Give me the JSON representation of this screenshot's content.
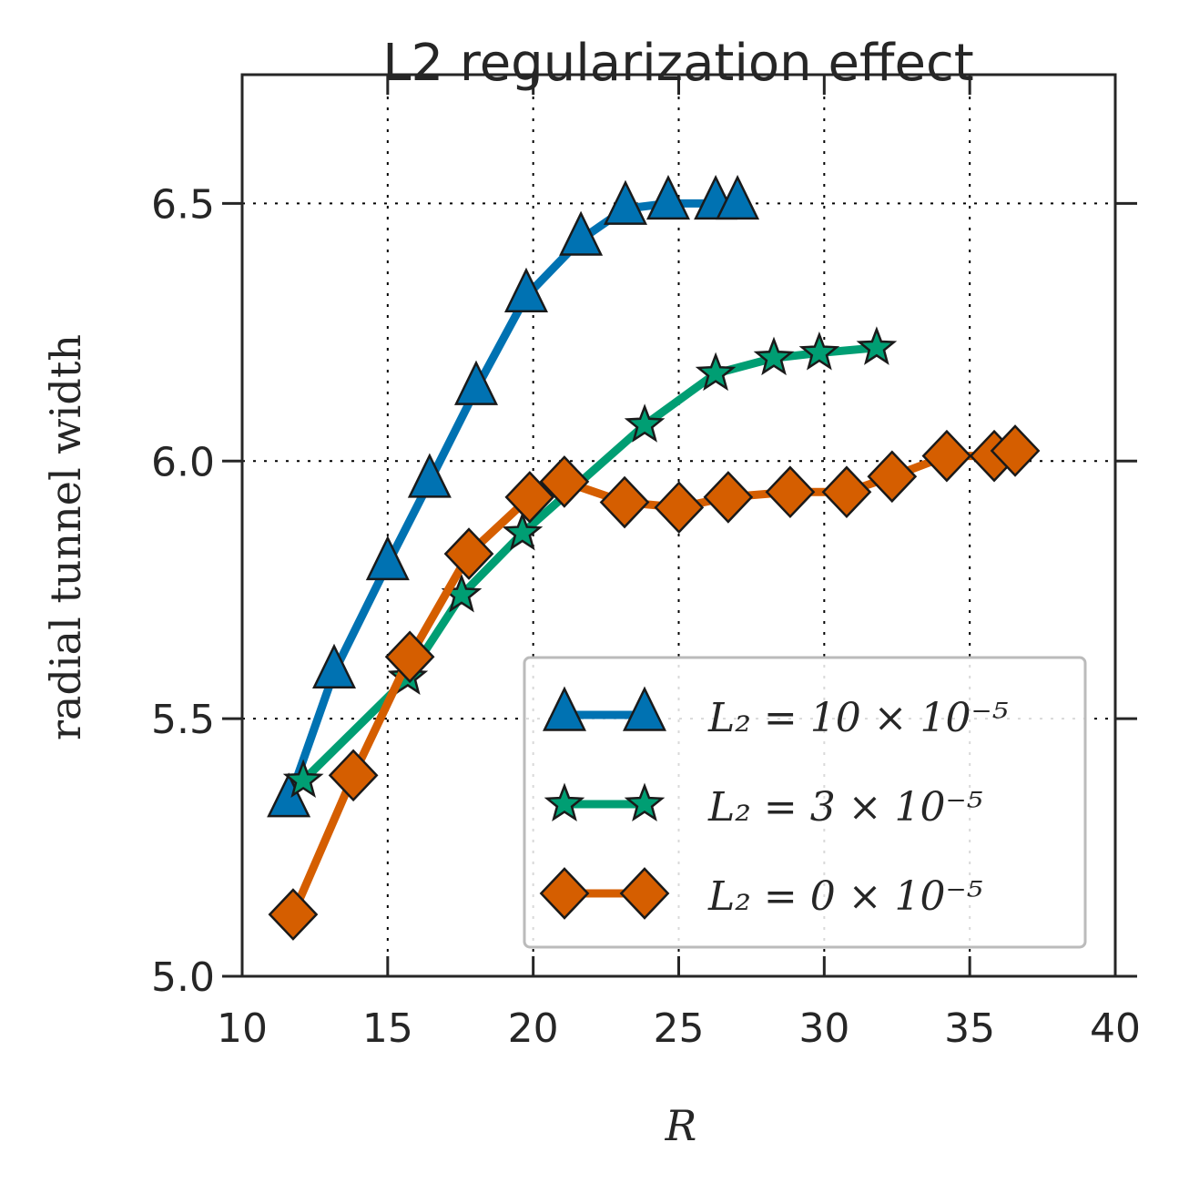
{
  "chart_data": {
    "type": "line",
    "title": "L2 regularization effect",
    "xlabel": "R",
    "ylabel": "radial tunnel width",
    "xlim": [
      10,
      40
    ],
    "ylim": [
      5.0,
      6.75
    ],
    "xticks": [
      10,
      15,
      20,
      25,
      30,
      35,
      40
    ],
    "xtick_labels": [
      "10",
      "15",
      "20",
      "25",
      "30",
      "35",
      "40"
    ],
    "yticks": [
      5.0,
      5.5,
      6.0,
      6.5
    ],
    "ytick_labels": [
      "5.0",
      "5.5",
      "6.0",
      "6.5"
    ],
    "grid": true,
    "legend_placement": "lower-right",
    "series": [
      {
        "name": "L₂ = 10 × 10⁻⁵",
        "color": "#0072b2",
        "marker": "triangle",
        "x": [
          11.6,
          13.16,
          15.0,
          16.44,
          18.04,
          19.76,
          21.64,
          23.17,
          24.64,
          26.27,
          27.02
        ],
        "y": [
          5.34,
          5.59,
          5.8,
          5.96,
          6.14,
          6.32,
          6.43,
          6.49,
          6.5,
          6.5,
          6.5
        ]
      },
      {
        "name": "L₂ = 3 × 10⁻⁵",
        "color": "#009e73",
        "marker": "star",
        "x": [
          12.1,
          15.69,
          17.54,
          19.63,
          23.83,
          26.27,
          28.27,
          29.83,
          31.8
        ],
        "y": [
          5.38,
          5.58,
          5.74,
          5.86,
          6.07,
          6.17,
          6.2,
          6.21,
          6.22
        ]
      },
      {
        "name": "L₂ = 0 × 10⁻⁵",
        "color": "#d55e00",
        "marker": "diamond",
        "x": [
          11.75,
          13.82,
          15.76,
          17.79,
          19.88,
          21.07,
          23.14,
          25.01,
          26.7,
          28.83,
          30.77,
          32.33,
          34.21,
          35.84,
          36.56
        ],
        "y": [
          5.12,
          5.39,
          5.62,
          5.82,
          5.93,
          5.96,
          5.92,
          5.91,
          5.93,
          5.94,
          5.94,
          5.97,
          6.01,
          6.01,
          6.02
        ]
      }
    ]
  }
}
